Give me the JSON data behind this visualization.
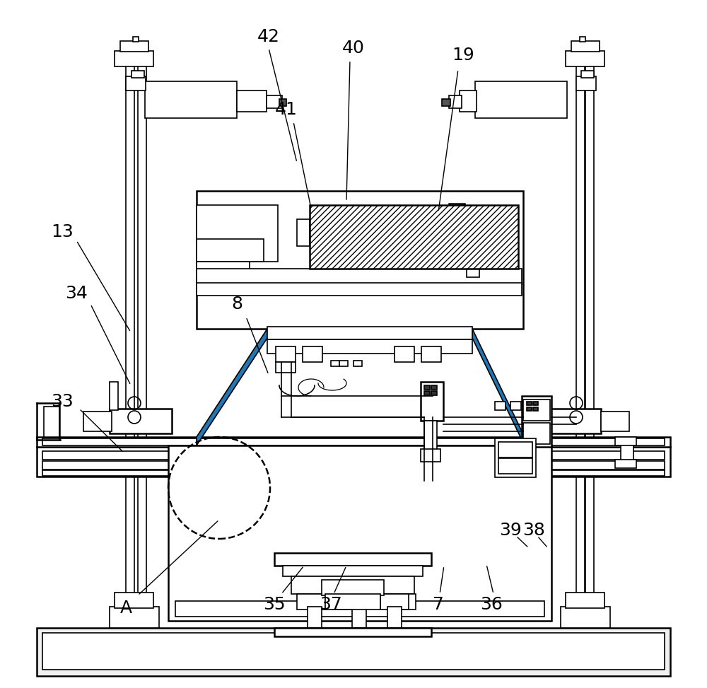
{
  "bg_color": "#ffffff",
  "line_color": "#000000",
  "figsize": [
    10.0,
    9.73
  ],
  "dpi": 100,
  "label_fontsize": 18,
  "labels_info": [
    [
      "42",
      380,
      52,
      380,
      68,
      420,
      230
    ],
    [
      "40",
      500,
      68,
      495,
      85,
      490,
      285
    ],
    [
      "41",
      405,
      155,
      415,
      172,
      440,
      295
    ],
    [
      "19",
      655,
      78,
      648,
      98,
      620,
      300
    ],
    [
      "13",
      88,
      328,
      108,
      340,
      185,
      470
    ],
    [
      "34",
      108,
      415,
      128,
      430,
      185,
      545
    ],
    [
      "8",
      335,
      430,
      348,
      448,
      380,
      530
    ],
    [
      "33",
      88,
      568,
      112,
      578,
      175,
      640
    ],
    [
      "A",
      178,
      860,
      195,
      842,
      310,
      735
    ],
    [
      "35",
      388,
      855,
      398,
      840,
      430,
      800
    ],
    [
      "37",
      468,
      855,
      472,
      840,
      490,
      800
    ],
    [
      "7",
      620,
      855,
      622,
      840,
      628,
      800
    ],
    [
      "36",
      695,
      855,
      698,
      840,
      688,
      798
    ],
    [
      "39",
      722,
      750,
      730,
      758,
      748,
      775
    ],
    [
      "38",
      755,
      750,
      760,
      758,
      775,
      775
    ]
  ]
}
